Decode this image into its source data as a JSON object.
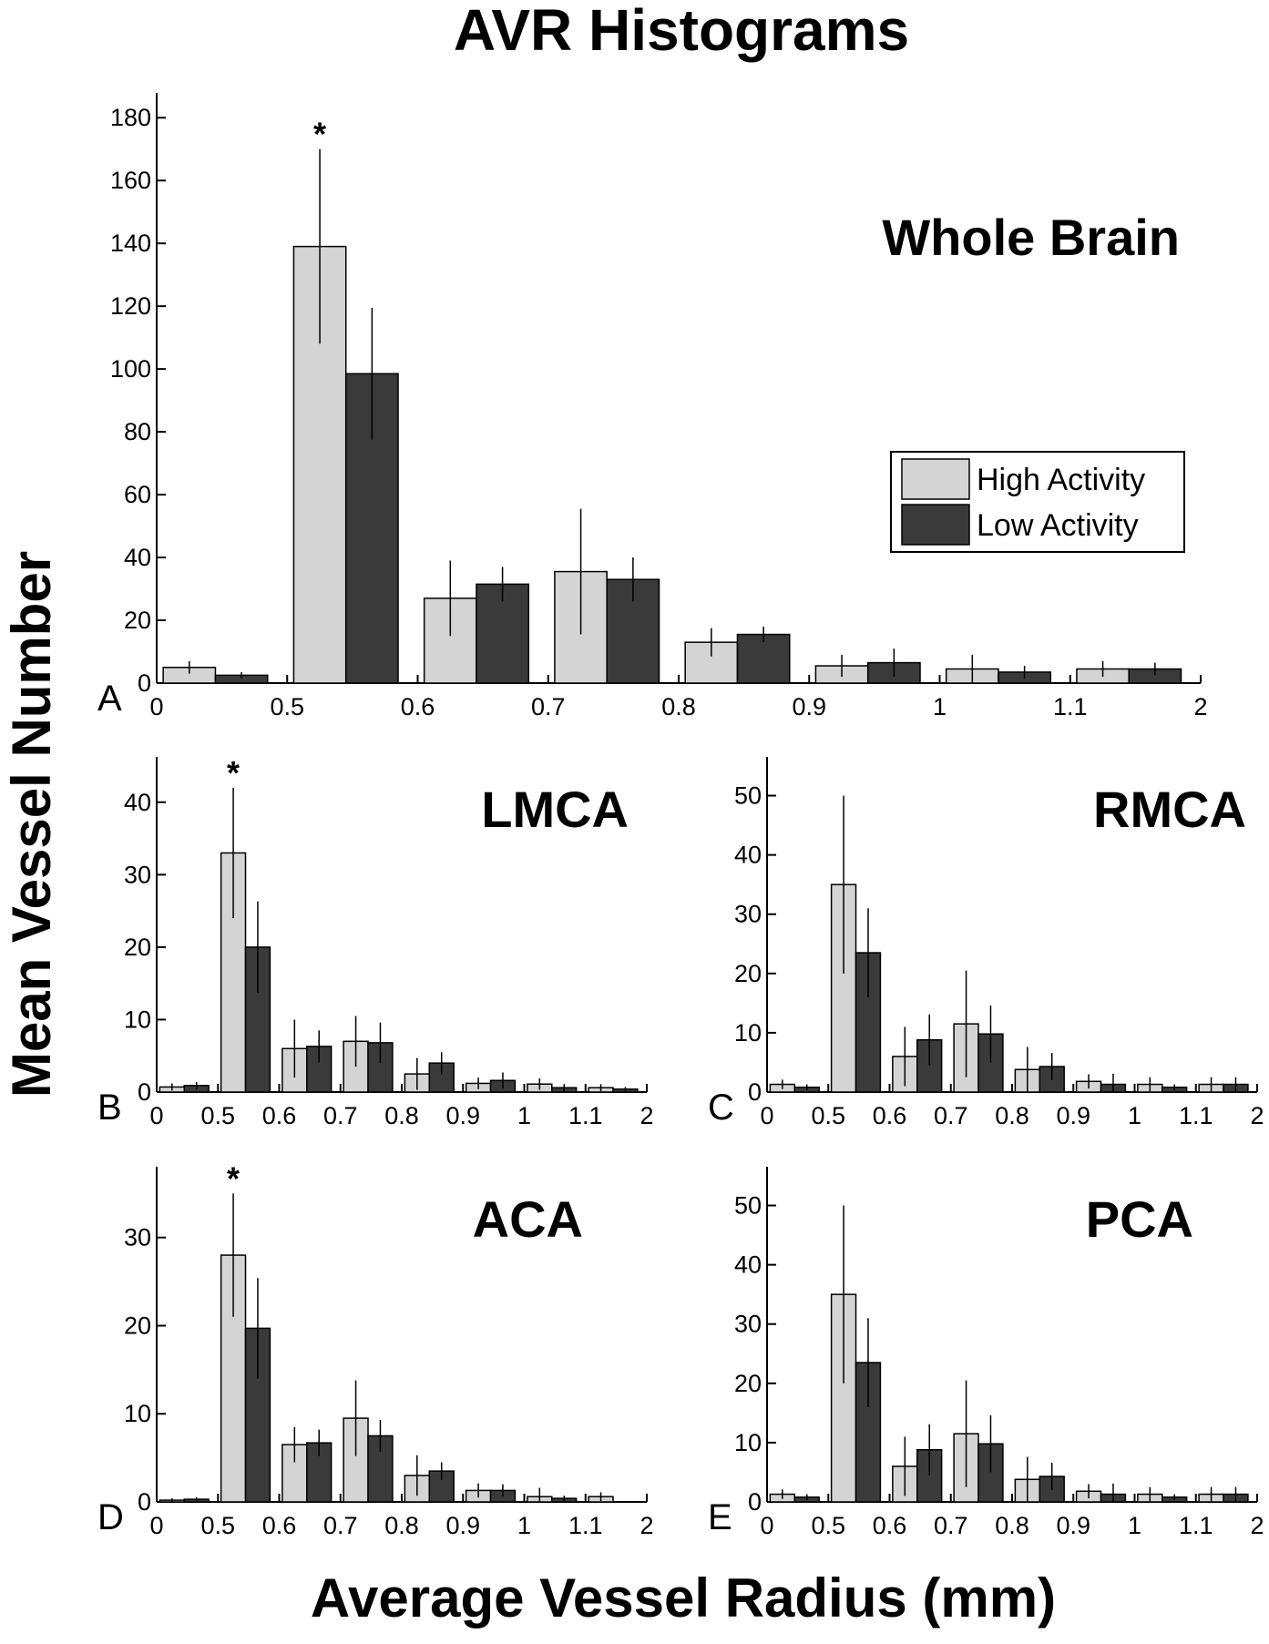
{
  "figure": {
    "title": "AVR Histograms",
    "xlabel": "Average Vessel Radius (mm)",
    "ylabel": "Mean Vessel Number"
  },
  "legend": {
    "entries": [
      {
        "name": "High Activity",
        "color": "#d4d4d4"
      },
      {
        "name": "Low Activity",
        "color": "#3a3a3a"
      }
    ],
    "placement": "right"
  },
  "chart_data": [
    {
      "panel": "A",
      "type": "bar",
      "title": "Whole Brain",
      "xticks": [
        "0",
        "0.5",
        "0.6",
        "0.7",
        "0.8",
        "0.9",
        "1",
        "1.1",
        "2"
      ],
      "ylim": [
        0,
        185
      ],
      "yticks": [
        0,
        20,
        40,
        60,
        80,
        100,
        120,
        140,
        160,
        180
      ],
      "series": [
        {
          "name": "High Activity",
          "values": [
            5,
            139,
            27,
            35.5,
            13,
            5.5,
            4.5,
            4.5
          ],
          "errors": [
            2,
            31,
            12,
            20,
            4.5,
            3.5,
            4.5,
            2.5
          ]
        },
        {
          "name": "Low Activity",
          "values": [
            2.5,
            98.5,
            31.5,
            33,
            15.5,
            6.5,
            3.5,
            4.5
          ],
          "errors": [
            1,
            21,
            5.5,
            7,
            2.5,
            4.5,
            2,
            2
          ]
        }
      ],
      "significant_bins": [
        1
      ],
      "significance_marker": "*"
    },
    {
      "panel": "B",
      "type": "bar",
      "title": "LMCA",
      "xticks": [
        "0",
        "0.5",
        "0.6",
        "0.7",
        "0.8",
        "0.9",
        "1",
        "1.1",
        "2"
      ],
      "ylim": [
        0,
        45
      ],
      "yticks": [
        0,
        10,
        20,
        30,
        40
      ],
      "series": [
        {
          "name": "High Activity",
          "values": [
            0.7,
            33,
            6,
            7,
            2.5,
            1.2,
            1.1,
            0.6
          ],
          "errors": [
            0.5,
            9,
            4,
            3.5,
            2.2,
            0.8,
            0.8,
            0.5
          ]
        },
        {
          "name": "Low Activity",
          "values": [
            0.9,
            20,
            6.3,
            6.8,
            4,
            1.6,
            0.6,
            0.4
          ],
          "errors": [
            0.5,
            6.3,
            2.2,
            2.8,
            1.5,
            1.1,
            0.5,
            0.3
          ]
        }
      ],
      "significant_bins": [
        1
      ],
      "significance_marker": "*"
    },
    {
      "panel": "C",
      "type": "bar",
      "title": "RMCA",
      "xticks": [
        "0",
        "0.5",
        "0.6",
        "0.7",
        "0.8",
        "0.9",
        "1",
        "1.1",
        "2"
      ],
      "ylim": [
        0,
        55
      ],
      "yticks": [
        0,
        10,
        20,
        30,
        40,
        50
      ],
      "series": [
        {
          "name": "High Activity",
          "values": [
            1.3,
            35,
            6,
            11.5,
            3.8,
            1.8,
            1.3,
            1.3
          ],
          "errors": [
            0.8,
            15,
            5,
            9,
            3.8,
            1.2,
            1.2,
            1.2
          ]
        },
        {
          "name": "Low Activity",
          "values": [
            0.8,
            23.5,
            8.8,
            9.8,
            4.3,
            1.3,
            0.8,
            1.3
          ],
          "errors": [
            0.5,
            7.5,
            4.3,
            4.8,
            2.3,
            1.8,
            0.5,
            1.2
          ]
        }
      ],
      "significant_bins": [],
      "significance_marker": ""
    },
    {
      "panel": "D",
      "type": "bar",
      "title": "ACA",
      "xticks": [
        "0",
        "0.5",
        "0.6",
        "0.7",
        "0.8",
        "0.9",
        "1",
        "1.1",
        "2"
      ],
      "ylim": [
        0,
        37
      ],
      "yticks": [
        0,
        10,
        20,
        30
      ],
      "series": [
        {
          "name": "High Activity",
          "values": [
            0.2,
            28,
            6.5,
            9.5,
            3,
            1.3,
            0.6,
            0.6
          ],
          "errors": [
            0.2,
            7,
            2,
            4.3,
            2.3,
            0.8,
            1,
            0.5
          ]
        },
        {
          "name": "Low Activity",
          "values": [
            0.3,
            19.7,
            6.7,
            7.5,
            3.5,
            1.3,
            0.4,
            0
          ],
          "errors": [
            0.2,
            5.7,
            1.5,
            1.8,
            1,
            0.7,
            0.3,
            0
          ]
        }
      ],
      "significant_bins": [
        1
      ],
      "significance_marker": "*"
    },
    {
      "panel": "E",
      "type": "bar",
      "title": "PCA",
      "xticks": [
        "0",
        "0.5",
        "0.6",
        "0.7",
        "0.8",
        "0.9",
        "1",
        "1.1",
        "2"
      ],
      "ylim": [
        0,
        55
      ],
      "yticks": [
        0,
        10,
        20,
        30,
        40,
        50
      ],
      "series": [
        {
          "name": "High Activity",
          "values": [
            1.3,
            35,
            6,
            11.5,
            3.8,
            1.8,
            1.3,
            1.3
          ],
          "errors": [
            0.8,
            15,
            5,
            9,
            3.8,
            1.2,
            1.2,
            1.2
          ]
        },
        {
          "name": "Low Activity",
          "values": [
            0.8,
            23.5,
            8.8,
            9.8,
            4.3,
            1.3,
            0.8,
            1.3
          ],
          "errors": [
            0.5,
            7.5,
            4.3,
            4.8,
            2.3,
            1.8,
            0.5,
            1.2
          ]
        }
      ],
      "significant_bins": [],
      "significance_marker": ""
    }
  ]
}
